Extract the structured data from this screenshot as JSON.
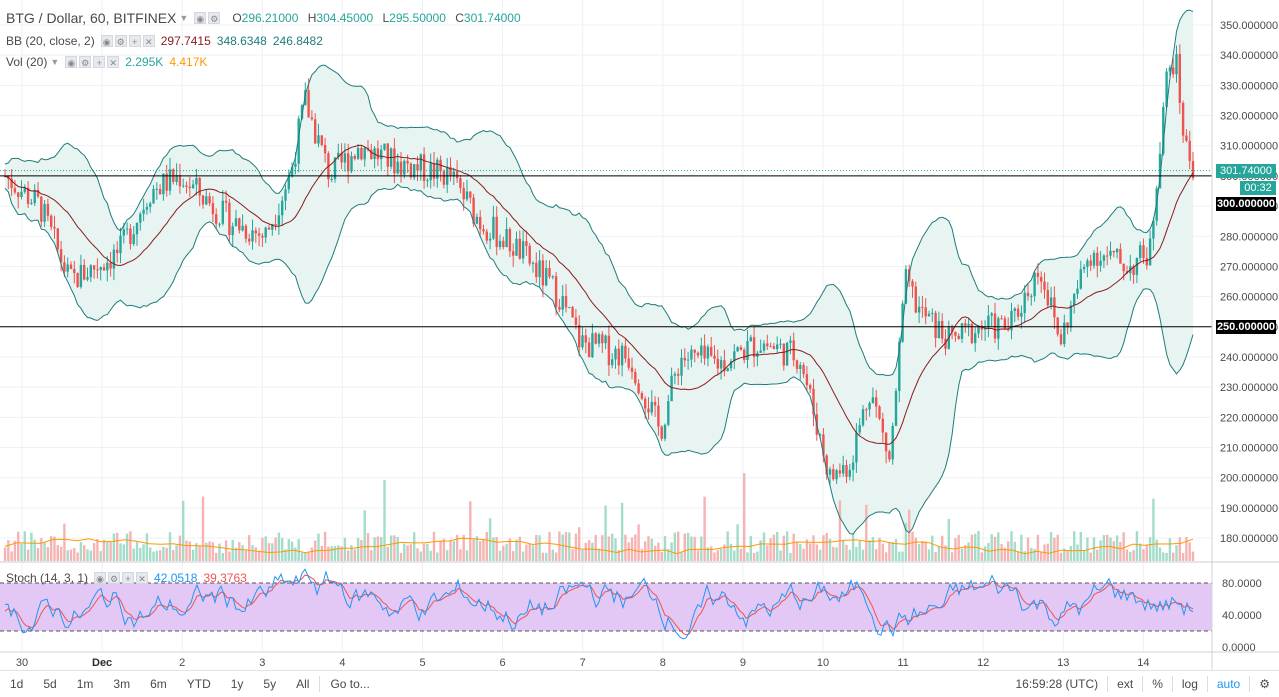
{
  "header": {
    "title": "BTG / Dollar, 60, BITFINEX",
    "ohlc": [
      {
        "k": "O",
        "v": "296.21000"
      },
      {
        "k": "H",
        "v": "304.45000"
      },
      {
        "k": "L",
        "v": "295.50000"
      },
      {
        "k": "C",
        "v": "301.74000"
      }
    ]
  },
  "indicators": {
    "bb": {
      "label": "BB (20, close, 2)",
      "v1": "297.7415",
      "v2": "348.6348",
      "v3": "246.8482"
    },
    "vol": {
      "label": "Vol (20)",
      "v1": "2.295K",
      "v2": "4.417K"
    },
    "stoch": {
      "label": "Stoch (14, 3, 1)",
      "v1": "42.0518",
      "v2": "39.3763"
    }
  },
  "price_axis": {
    "ticks": [
      "350.000000",
      "340.000000",
      "330.000000",
      "320.000000",
      "310.000000",
      "300.000000",
      "290.000000",
      "280.000000",
      "270.000000",
      "260.000000",
      "250.000000",
      "240.000000",
      "230.000000",
      "220.000000",
      "210.000000",
      "200.000000",
      "190.000000",
      "180.000000"
    ],
    "last_price": "301.74000",
    "countdown": "00:32",
    "line_300": "300.000000",
    "line_250": "250.000000"
  },
  "stoch_axis": {
    "ticks": [
      "80.0000",
      "40.0000",
      "0.0000"
    ]
  },
  "time_axis": [
    "30",
    "Dec",
    "2",
    "3",
    "4",
    "5",
    "6",
    "7",
    "8",
    "9",
    "10",
    "11",
    "12",
    "13",
    "14"
  ],
  "bottom_bar": {
    "ranges": [
      "1d",
      "5d",
      "1m",
      "3m",
      "6m",
      "YTD",
      "1y",
      "5y",
      "All"
    ],
    "goto": "Go to...",
    "clock": "16:59:28 (UTC)",
    "ext": "ext",
    "pct": "%",
    "log": "log",
    "auto": "auto"
  },
  "colors": {
    "up": "#26a69a",
    "down": "#ef5350",
    "bb_band": "#1f7c7c",
    "bb_fill": "#e7f4f2",
    "bb_mid": "#8b1a1a",
    "stoch_k": "#2196f3",
    "stoch_d": "#ef5350",
    "stoch_fill": "#e3c8f5"
  },
  "icons": [
    "eye-icon",
    "gear-icon",
    "plus-icon",
    "close-icon",
    "settings-gear-icon"
  ]
}
